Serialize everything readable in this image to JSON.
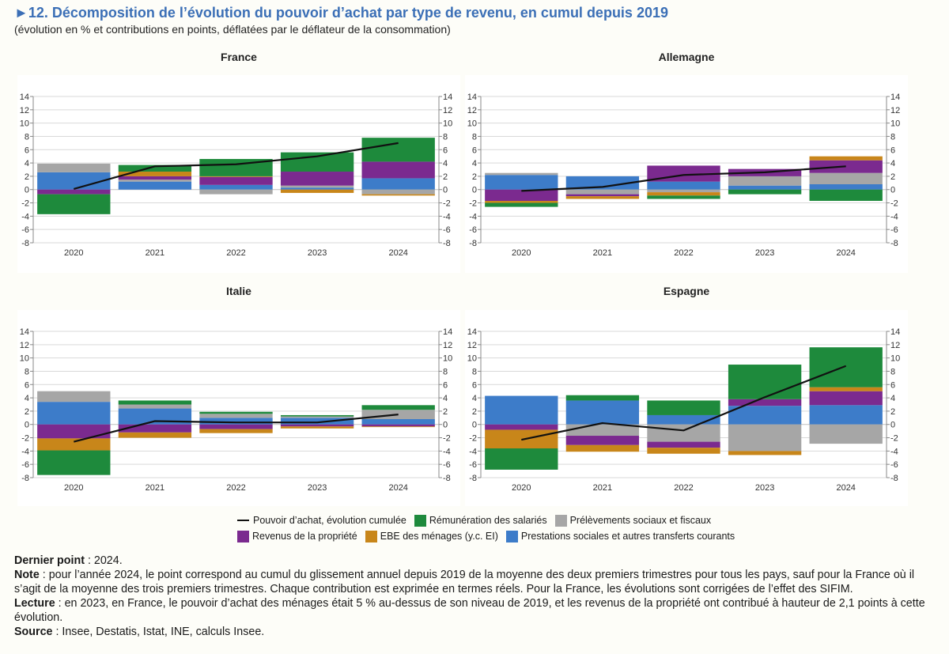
{
  "header": {
    "title": "►12. Décomposition de l’évolution du pouvoir d’achat par type de revenu, en cumul depuis 2019",
    "subtitle": "(évolution en % et contributions en points, déflatées par le déflateur de la consommation)"
  },
  "colors": {
    "remuneration": "#1e8a3c",
    "prelevements": "#a6a6a6",
    "revenus_propriete": "#7b2a8f",
    "ebe": "#c8861a",
    "prestations": "#3d7cc9",
    "line": "#111111",
    "panel_bg": "#ffffff",
    "grid": "#d9d9d9"
  },
  "chart_data": [
    {
      "type": "bar",
      "stacked": true,
      "title": "France",
      "categories": [
        "2020",
        "2021",
        "2022",
        "2023",
        "2024"
      ],
      "ylim": [
        -8,
        14
      ],
      "yticks": [
        -8,
        -6,
        -4,
        -2,
        0,
        2,
        4,
        6,
        8,
        10,
        12,
        14
      ],
      "series": [
        {
          "name": "Prestations sociales et autres transferts courants",
          "key": "prestations",
          "values": [
            2.6,
            1.2,
            0.7,
            0.3,
            1.7
          ]
        },
        {
          "name": "Prélèvements sociaux et fiscaux",
          "key": "prelevements",
          "values": [
            1.3,
            0.3,
            -0.7,
            0.3,
            -0.7
          ]
        },
        {
          "name": "Revenus de la propriété",
          "key": "revenus_propriete",
          "values": [
            -0.7,
            0.5,
            1.2,
            2.1,
            2.5
          ]
        },
        {
          "name": "EBE des ménages (y.c. EI)",
          "key": "ebe",
          "values": [
            0.0,
            0.7,
            0.1,
            -0.5,
            -0.2
          ]
        },
        {
          "name": "Rémunération des salariés",
          "key": "remuneration",
          "values": [
            -3.0,
            1.0,
            2.6,
            2.9,
            3.6
          ]
        }
      ],
      "line": {
        "name": "Pouvoir d’achat, évolution cumulée",
        "values": [
          0.1,
          3.5,
          3.8,
          5.0,
          7.0
        ]
      }
    },
    {
      "type": "bar",
      "stacked": true,
      "title": "Allemagne",
      "categories": [
        "2020",
        "2021",
        "2022",
        "2023",
        "2024"
      ],
      "ylim": [
        -8,
        14
      ],
      "yticks": [
        -8,
        -6,
        -4,
        -2,
        0,
        2,
        4,
        6,
        8,
        10,
        12,
        14
      ],
      "series": [
        {
          "name": "Prestations sociales et autres transferts courants",
          "key": "prestations",
          "values": [
            2.2,
            2.0,
            1.2,
            0.6,
            0.8
          ]
        },
        {
          "name": "Prélèvements sociaux et fiscaux",
          "key": "prelevements",
          "values": [
            0.3,
            -0.7,
            -0.4,
            1.4,
            1.7
          ]
        },
        {
          "name": "Revenus de la propriété",
          "key": "revenus_propriete",
          "values": [
            -1.7,
            -0.3,
            2.4,
            1.1,
            1.9
          ]
        },
        {
          "name": "EBE des ménages (y.c. EI)",
          "key": "ebe",
          "values": [
            -0.3,
            -0.4,
            -0.5,
            0.0,
            0.6
          ]
        },
        {
          "name": "Rémunération des salariés",
          "key": "remuneration",
          "values": [
            -0.6,
            0.0,
            -0.5,
            -0.7,
            -1.7
          ]
        }
      ],
      "line": {
        "name": "Pouvoir d’achat, évolution cumulée",
        "values": [
          -0.2,
          0.4,
          2.2,
          2.6,
          3.5
        ]
      }
    },
    {
      "type": "bar",
      "stacked": true,
      "title": "Italie",
      "categories": [
        "2020",
        "2021",
        "2022",
        "2023",
        "2024"
      ],
      "ylim": [
        -8,
        14
      ],
      "yticks": [
        -8,
        -6,
        -4,
        -2,
        0,
        2,
        4,
        6,
        8,
        10,
        12,
        14
      ],
      "series": [
        {
          "name": "Prestations sociales et autres transferts courants",
          "key": "prestations",
          "values": [
            3.4,
            2.4,
            1.0,
            1.0,
            0.8
          ]
        },
        {
          "name": "Prélèvements sociaux et fiscaux",
          "key": "prelevements",
          "values": [
            1.6,
            0.6,
            0.6,
            0.2,
            1.4
          ]
        },
        {
          "name": "Revenus de la propriété",
          "key": "revenus_propriete",
          "values": [
            -2.1,
            -1.2,
            -0.7,
            -0.3,
            -0.3
          ]
        },
        {
          "name": "EBE des ménages (y.c. EI)",
          "key": "ebe",
          "values": [
            -1.8,
            -0.8,
            -0.6,
            -0.3,
            -0.1
          ]
        },
        {
          "name": "Rémunération des salariés",
          "key": "remuneration",
          "values": [
            -3.7,
            0.6,
            0.3,
            0.2,
            0.7
          ]
        }
      ],
      "line": {
        "name": "Pouvoir d’achat, évolution cumulée",
        "values": [
          -2.6,
          0.5,
          0.3,
          0.3,
          1.5
        ]
      }
    },
    {
      "type": "bar",
      "stacked": true,
      "title": "Espagne",
      "categories": [
        "2020",
        "2021",
        "2022",
        "2023",
        "2024"
      ],
      "ylim": [
        -8,
        14
      ],
      "yticks": [
        -8,
        -6,
        -4,
        -2,
        0,
        2,
        4,
        6,
        8,
        10,
        12,
        14
      ],
      "series": [
        {
          "name": "Prestations sociales et autres transferts courants",
          "key": "prestations",
          "values": [
            4.3,
            3.6,
            1.4,
            2.8,
            2.9
          ]
        },
        {
          "name": "Prélèvements sociaux et fiscaux",
          "key": "prelevements",
          "values": [
            0.0,
            -1.7,
            -2.6,
            -4.0,
            -2.9
          ]
        },
        {
          "name": "Revenus de la propriété",
          "key": "revenus_propriete",
          "values": [
            -0.8,
            -1.4,
            -0.9,
            1.0,
            2.1
          ]
        },
        {
          "name": "EBE des ménages (y.c. EI)",
          "key": "ebe",
          "values": [
            -2.8,
            -1.0,
            -0.9,
            -0.6,
            0.6
          ]
        },
        {
          "name": "Rémunération des salariés",
          "key": "remuneration",
          "values": [
            -3.2,
            0.8,
            2.2,
            5.2,
            6.0
          ]
        }
      ],
      "line": {
        "name": "Pouvoir d’achat, évolution cumulée",
        "values": [
          -2.3,
          0.2,
          -0.9,
          4.1,
          8.8
        ]
      }
    }
  ],
  "legend": {
    "row1": [
      {
        "key": "line",
        "label": "Pouvoir d’achat, évolution cumulée"
      },
      {
        "key": "remuneration",
        "label": "Rémunération des salariés"
      },
      {
        "key": "prelevements",
        "label": "Prélèvements sociaux et fiscaux"
      }
    ],
    "row2": [
      {
        "key": "revenus_propriete",
        "label": "Revenus de la propriété"
      },
      {
        "key": "ebe",
        "label": "EBE des ménages (y.c. EI)"
      },
      {
        "key": "prestations",
        "label": "Prestations sociales et autres transferts courants"
      }
    ]
  },
  "notes": {
    "dernier_point_label": "Dernier point",
    "dernier_point_text": " : 2024.",
    "note_label": "Note",
    "note_text": " : pour l’année 2024, le point correspond au cumul du glissement annuel depuis 2019 de la moyenne des deux premiers trimestres pour tous les pays, sauf pour la France où il s’agit de la moyenne des trois premiers trimestres. Chaque contribution est exprimée en termes réels. Pour la France, les évolutions sont corrigées de l’effet des SIFIM.",
    "lecture_label": "Lecture",
    "lecture_text": " : en 2023, en France, le pouvoir d’achat des ménages était 5 % au-dessus de son niveau de 2019, et les revenus de la propriété ont contribué à hauteur de 2,1 points à cette évolution.",
    "source_label": "Source",
    "source_text": " : Insee, Destatis, Istat, INE, calculs Insee."
  }
}
